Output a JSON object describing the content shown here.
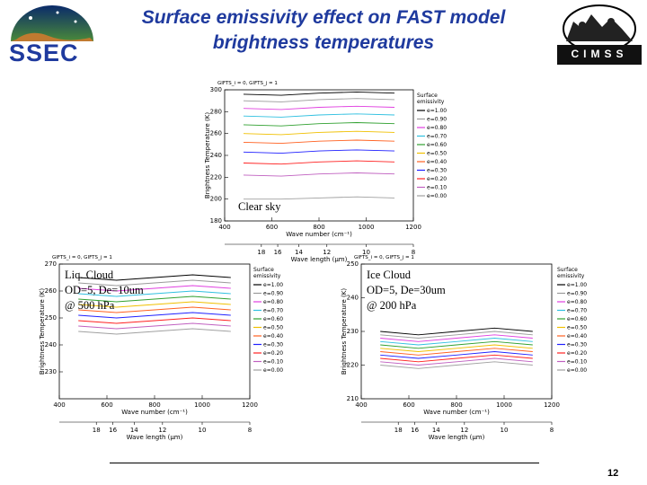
{
  "slide": {
    "title_line1": "Surface emissivity effect on FAST model",
    "title_line2": "brightness temperatures",
    "logo_left_text": "SSEC",
    "logo_right_text": "CIMSS",
    "page_number": "12"
  },
  "chart_data": [
    {
      "type": "line",
      "header": "GIFTS_i = 0, GIFTS_j = 1",
      "note": [
        "Clear sky"
      ],
      "xlabel": "Wave number (cm⁻¹)",
      "ylabel": "Brightness Temperature (K)",
      "x2label": "Wave length (μm)",
      "xlim": [
        400,
        1200
      ],
      "ylim": [
        180,
        300
      ],
      "xticks": [
        "400",
        "600",
        "800",
        "1000",
        "1200"
      ],
      "yticks": [
        "180",
        "200",
        "220",
        "240",
        "260",
        "280",
        "300"
      ],
      "x2ticks": [
        "18",
        "16",
        "14",
        "12",
        "10",
        "8"
      ],
      "legend_title": [
        "Surface",
        "emissivity"
      ],
      "series": [
        {
          "name": "e=1.00",
          "color": "#000000",
          "values": [
            296,
            295,
            297,
            298,
            297
          ]
        },
        {
          "name": "e=0.90",
          "color": "#9a9a9a",
          "values": [
            290,
            289,
            291,
            292,
            291
          ]
        },
        {
          "name": "e=0.80",
          "color": "#e040e0",
          "values": [
            283,
            282,
            284,
            285,
            284
          ]
        },
        {
          "name": "e=0.70",
          "color": "#30c0e0",
          "values": [
            276,
            275,
            277,
            278,
            277
          ]
        },
        {
          "name": "e=0.60",
          "color": "#30a030",
          "values": [
            268,
            267,
            269,
            270,
            269
          ]
        },
        {
          "name": "e=0.50",
          "color": "#f0c000",
          "values": [
            260,
            259,
            261,
            262,
            261
          ]
        },
        {
          "name": "e=0.40",
          "color": "#ff6020",
          "values": [
            252,
            251,
            253,
            254,
            253
          ]
        },
        {
          "name": "e=0.30",
          "color": "#2020ff",
          "values": [
            243,
            242,
            244,
            245,
            244
          ]
        },
        {
          "name": "e=0.20",
          "color": "#ff2020",
          "values": [
            233,
            232,
            234,
            235,
            234
          ]
        },
        {
          "name": "e=0.10",
          "color": "#c060c0",
          "values": [
            222,
            221,
            223,
            224,
            223
          ]
        },
        {
          "name": "e=0.00",
          "color": "#a0a0a0",
          "values": [
            200,
            200,
            201,
            202,
            201
          ]
        }
      ]
    },
    {
      "type": "line",
      "header": "GIFTS_i = 0, GIFTS_j = 1",
      "note": [
        "Liq. Cloud",
        "OD=5, De=10um",
        "@ 500 hPa"
      ],
      "xlabel": "Wave number (cm⁻¹)",
      "ylabel": "Brightness Temperature (K)",
      "x2label": "Wave length (μm)",
      "xlim": [
        400,
        1200
      ],
      "ylim": [
        220,
        270
      ],
      "xticks": [
        "400",
        "600",
        "800",
        "1000",
        "1200"
      ],
      "yticks": [
        "230",
        "240",
        "250",
        "260",
        "270"
      ],
      "x2ticks": [
        "18",
        "16",
        "14",
        "12",
        "10",
        "8"
      ],
      "legend_title": [
        "Surface",
        "emissivity"
      ],
      "series": [
        {
          "name": "e=1.00",
          "color": "#000000",
          "values": [
            265,
            264,
            265,
            266,
            265
          ]
        },
        {
          "name": "e=0.90",
          "color": "#9a9a9a",
          "values": [
            263,
            262,
            263,
            264,
            263
          ]
        },
        {
          "name": "e=0.80",
          "color": "#e040e0",
          "values": [
            261,
            260,
            261,
            262,
            261
          ]
        },
        {
          "name": "e=0.70",
          "color": "#30c0e0",
          "values": [
            259,
            258,
            259,
            260,
            259
          ]
        },
        {
          "name": "e=0.60",
          "color": "#30a030",
          "values": [
            257,
            256,
            257,
            258,
            257
          ]
        },
        {
          "name": "e=0.50",
          "color": "#f0c000",
          "values": [
            255,
            254,
            255,
            256,
            255
          ]
        },
        {
          "name": "e=0.40",
          "color": "#ff6020",
          "values": [
            253,
            252,
            253,
            254,
            253
          ]
        },
        {
          "name": "e=0.30",
          "color": "#2020ff",
          "values": [
            251,
            250,
            251,
            252,
            251
          ]
        },
        {
          "name": "e=0.20",
          "color": "#ff2020",
          "values": [
            249,
            248,
            249,
            250,
            249
          ]
        },
        {
          "name": "e=0.10",
          "color": "#c060c0",
          "values": [
            247,
            246,
            247,
            248,
            247
          ]
        },
        {
          "name": "e=0.00",
          "color": "#a0a0a0",
          "values": [
            245,
            244,
            245,
            246,
            245
          ]
        }
      ]
    },
    {
      "type": "line",
      "header": "GIFTS_i = 0, GIFTS_j = 1",
      "note": [
        "Ice Cloud",
        "OD=5, De=30um",
        "@ 200 hPa"
      ],
      "xlabel": "Wave number (cm⁻¹)",
      "ylabel": "Brightness Temperature (K)",
      "x2label": "Wave length (μm)",
      "xlim": [
        400,
        1200
      ],
      "ylim": [
        210,
        250
      ],
      "xticks": [
        "400",
        "600",
        "800",
        "1000",
        "1200"
      ],
      "yticks": [
        "210",
        "220",
        "230",
        "240",
        "250"
      ],
      "x2ticks": [
        "18",
        "16",
        "14",
        "12",
        "10",
        "8"
      ],
      "legend_title": [
        "Surface",
        "emissivity"
      ],
      "series": [
        {
          "name": "e=1.00",
          "color": "#000000",
          "values": [
            230,
            229,
            230,
            231,
            230
          ]
        },
        {
          "name": "e=0.90",
          "color": "#9a9a9a",
          "values": [
            229,
            228,
            229,
            230,
            229
          ]
        },
        {
          "name": "e=0.80",
          "color": "#e040e0",
          "values": [
            228,
            227,
            228,
            229,
            228
          ]
        },
        {
          "name": "e=0.70",
          "color": "#30c0e0",
          "values": [
            227,
            226,
            227,
            228,
            227
          ]
        },
        {
          "name": "e=0.60",
          "color": "#30a030",
          "values": [
            226,
            225,
            226,
            227,
            226
          ]
        },
        {
          "name": "e=0.50",
          "color": "#f0c000",
          "values": [
            225,
            224,
            225,
            226,
            225
          ]
        },
        {
          "name": "e=0.40",
          "color": "#ff6020",
          "values": [
            224,
            223,
            224,
            225,
            224
          ]
        },
        {
          "name": "e=0.30",
          "color": "#2020ff",
          "values": [
            223,
            222,
            223,
            224,
            223
          ]
        },
        {
          "name": "e=0.20",
          "color": "#ff2020",
          "values": [
            222,
            221,
            222,
            223,
            222
          ]
        },
        {
          "name": "e=0.10",
          "color": "#c060c0",
          "values": [
            221,
            220,
            221,
            222,
            221
          ]
        },
        {
          "name": "e=0.00",
          "color": "#a0a0a0",
          "values": [
            220,
            219,
            220,
            221,
            220
          ]
        }
      ]
    }
  ]
}
